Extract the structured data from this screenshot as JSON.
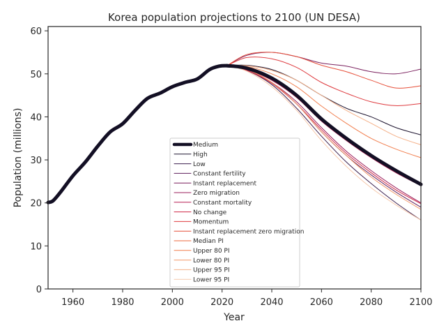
{
  "chart_data": {
    "type": "line",
    "title": "Korea population projections to 2100 (UN DESA)",
    "xlabel": "Year",
    "ylabel": "Population (millions)",
    "xlim": [
      1950,
      2100
    ],
    "ylim": [
      0,
      61
    ],
    "xticks": [
      1960,
      1980,
      2000,
      2020,
      2040,
      2060,
      2080,
      2100
    ],
    "yticks": [
      0,
      10,
      20,
      30,
      40,
      50,
      60
    ],
    "grid": false,
    "legend_position": "lower-center",
    "historical": {
      "x": [
        1950,
        1952,
        1955,
        1960,
        1965,
        1970,
        1975,
        1980,
        1985,
        1990,
        1995,
        2000,
        2005,
        2010,
        2015,
        2019,
        2022
      ],
      "y": [
        20.1,
        20.5,
        22.5,
        26.3,
        29.5,
        33.2,
        36.5,
        38.4,
        41.5,
        44.3,
        45.5,
        47.0,
        48.0,
        48.8,
        51.0,
        51.8,
        51.9
      ]
    },
    "projection_x": [
      2022,
      2030,
      2040,
      2050,
      2060,
      2070,
      2080,
      2090,
      2100
    ],
    "series": [
      {
        "name": "Medium",
        "color": "#130f24",
        "width": 5,
        "values": [
          51.9,
          51.3,
          49.0,
          45.0,
          39.5,
          35.0,
          31.0,
          27.5,
          24.3
        ]
      },
      {
        "name": "High",
        "color": "#1e1530",
        "width": 1,
        "values": [
          51.9,
          52.0,
          51.0,
          48.5,
          45.0,
          42.0,
          40.0,
          37.5,
          35.8
        ]
      },
      {
        "name": "Low",
        "color": "#3b1f4e",
        "width": 1,
        "values": [
          51.9,
          50.8,
          47.5,
          42.0,
          35.5,
          29.5,
          24.5,
          20.0,
          16.0
        ]
      },
      {
        "name": "Constant fertility",
        "color": "#5e1f5c",
        "width": 1,
        "values": [
          51.9,
          50.9,
          48.0,
          43.0,
          36.5,
          31.0,
          26.5,
          22.5,
          19.0
        ]
      },
      {
        "name": "Instant replacement",
        "color": "#7a1f5d",
        "width": 1,
        "values": [
          51.9,
          54.3,
          55.0,
          54.0,
          52.5,
          51.8,
          50.5,
          50.0,
          51.1
        ]
      },
      {
        "name": "Zero migration",
        "color": "#9a1c5a",
        "width": 1,
        "values": [
          51.9,
          51.0,
          48.0,
          43.5,
          37.5,
          32.0,
          27.5,
          23.5,
          20.0
        ]
      },
      {
        "name": "Constant mortality",
        "color": "#b71b52",
        "width": 1,
        "values": [
          51.9,
          51.0,
          48.5,
          44.5,
          39.0,
          34.5,
          30.5,
          27.0,
          24.0
        ]
      },
      {
        "name": "No change",
        "color": "#cf2846",
        "width": 1,
        "values": [
          51.9,
          50.8,
          47.8,
          43.0,
          37.0,
          31.5,
          27.0,
          23.0,
          19.8
        ]
      },
      {
        "name": "Momentum",
        "color": "#de3a3e",
        "width": 1,
        "values": [
          51.9,
          53.8,
          53.5,
          51.5,
          48.0,
          45.5,
          43.5,
          42.6,
          43.1
        ]
      },
      {
        "name": "Instant replacement zero migration",
        "color": "#e64e38",
        "width": 1,
        "values": [
          51.9,
          54.5,
          55.0,
          54.0,
          52.0,
          50.5,
          48.5,
          46.7,
          47.2
        ]
      },
      {
        "name": "Median PI",
        "color": "#ed6a3e",
        "width": 1,
        "values": [
          51.9,
          51.3,
          49.0,
          45.0,
          39.5,
          35.0,
          31.0,
          27.5,
          24.5
        ]
      },
      {
        "name": "Upper 80 PI",
        "color": "#f17f4f",
        "width": 1,
        "values": [
          51.9,
          51.7,
          50.0,
          47.0,
          42.5,
          38.5,
          35.0,
          32.5,
          30.5
        ]
      },
      {
        "name": "Lower 80 PI",
        "color": "#f29766",
        "width": 1,
        "values": [
          51.9,
          51.0,
          48.0,
          43.0,
          36.5,
          31.0,
          26.0,
          22.0,
          18.5
        ]
      },
      {
        "name": "Upper 95 PI",
        "color": "#f4b088",
        "width": 1,
        "values": [
          51.9,
          51.9,
          50.8,
          48.5,
          45.0,
          41.5,
          38.5,
          35.5,
          33.5
        ]
      },
      {
        "name": "Lower 95 PI",
        "color": "#f6c8ab",
        "width": 1,
        "values": [
          51.9,
          50.6,
          47.0,
          41.5,
          34.5,
          28.5,
          23.5,
          19.5,
          16.0
        ]
      }
    ]
  }
}
